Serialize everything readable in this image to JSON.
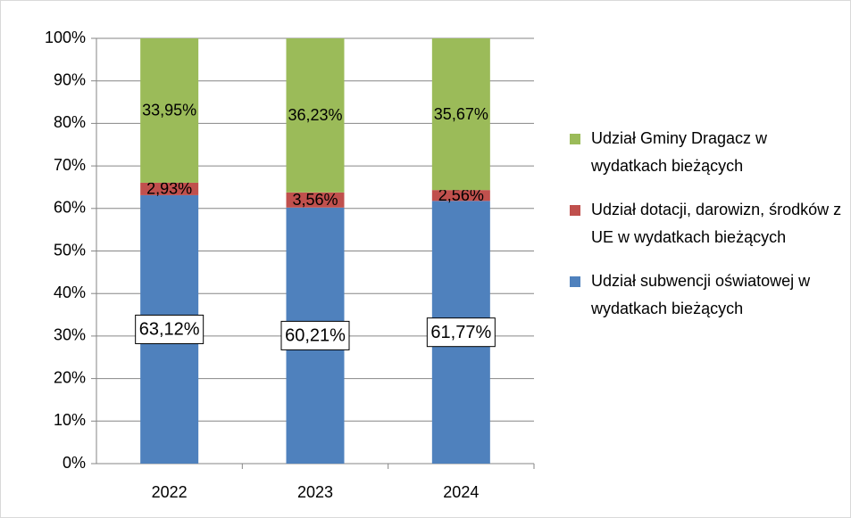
{
  "chart_data": {
    "type": "stacked_bar",
    "categories": [
      "2022",
      "2023",
      "2024"
    ],
    "series": [
      {
        "name": "Udział subwencji oświatowej w wydatkach bieżących",
        "color": "#4f81bd",
        "values": [
          63.12,
          60.21,
          61.77
        ],
        "value_labels": [
          "63,12%",
          "60,21%",
          "61,77%"
        ]
      },
      {
        "name": "Udział dotacji, darowizn, środków z UE w wydatkach bieżących",
        "color": "#c0504d",
        "values": [
          2.93,
          3.56,
          2.56
        ],
        "value_labels": [
          "2,93%",
          "3,56%",
          "2,56%"
        ]
      },
      {
        "name": "Udział Gminy Dragacz w wydatkach bieżących",
        "color": "#9bbb59",
        "values": [
          33.95,
          36.23,
          35.67
        ],
        "value_labels": [
          "33,95%",
          "36,23%",
          "35,67%"
        ]
      }
    ],
    "ylim": [
      0,
      100
    ],
    "yticks": [
      {
        "value": 0,
        "label": "0%"
      },
      {
        "value": 10,
        "label": "10%"
      },
      {
        "value": 20,
        "label": "20%"
      },
      {
        "value": 30,
        "label": "30%"
      },
      {
        "value": 40,
        "label": "40%"
      },
      {
        "value": 50,
        "label": "50%"
      },
      {
        "value": 60,
        "label": "60%"
      },
      {
        "value": 70,
        "label": "70%"
      },
      {
        "value": 80,
        "label": "80%"
      },
      {
        "value": 90,
        "label": "90%"
      },
      {
        "value": 100,
        "label": "100%"
      }
    ],
    "grid": true,
    "legend": "right"
  }
}
